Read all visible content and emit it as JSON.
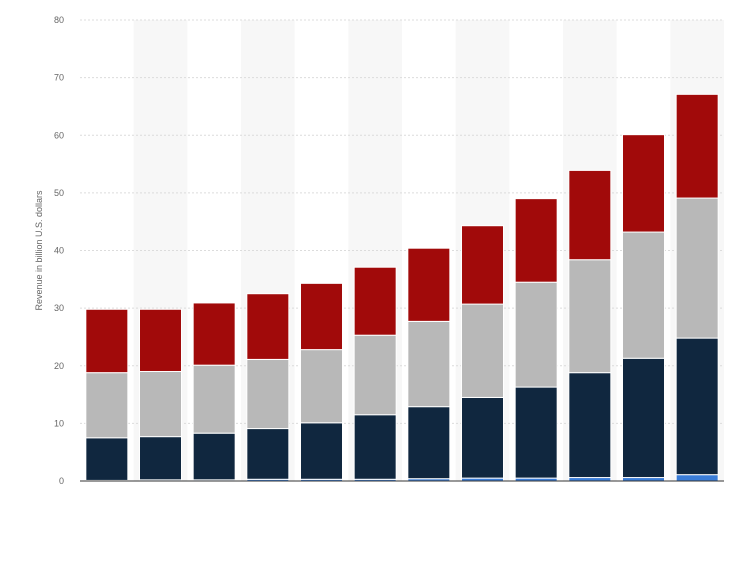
{
  "chart_data": {
    "type": "bar",
    "stacked": true,
    "ylabel": "Revenue in billion U.S. dollars",
    "ylim": [
      0,
      80
    ],
    "yticks": [
      0,
      10,
      20,
      30,
      40,
      50,
      60,
      70,
      80
    ],
    "grid": true,
    "legend": "none",
    "categories": [
      "",
      "",
      "",
      "",
      "",
      "",
      "",
      "",
      "",
      "",
      "",
      ""
    ],
    "series": [
      {
        "color": "#3a7dd8",
        "values": [
          0.1,
          0.2,
          0.2,
          0.3,
          0.3,
          0.3,
          0.4,
          0.5,
          0.5,
          0.6,
          0.6,
          1.1
        ]
      },
      {
        "color": "#10273f",
        "values": [
          7.4,
          7.5,
          8.1,
          8.8,
          9.8,
          11.2,
          12.5,
          14.0,
          15.8,
          18.2,
          20.7,
          23.7
        ]
      },
      {
        "color": "#b8b8b8",
        "values": [
          11.3,
          11.3,
          11.8,
          12.0,
          12.7,
          13.8,
          14.8,
          16.2,
          18.2,
          19.6,
          21.9,
          24.3
        ]
      },
      {
        "color": "#a10a0a",
        "values": [
          11.0,
          10.8,
          10.8,
          11.4,
          11.5,
          11.8,
          12.7,
          13.6,
          14.5,
          15.5,
          16.9,
          18.0
        ]
      }
    ]
  }
}
